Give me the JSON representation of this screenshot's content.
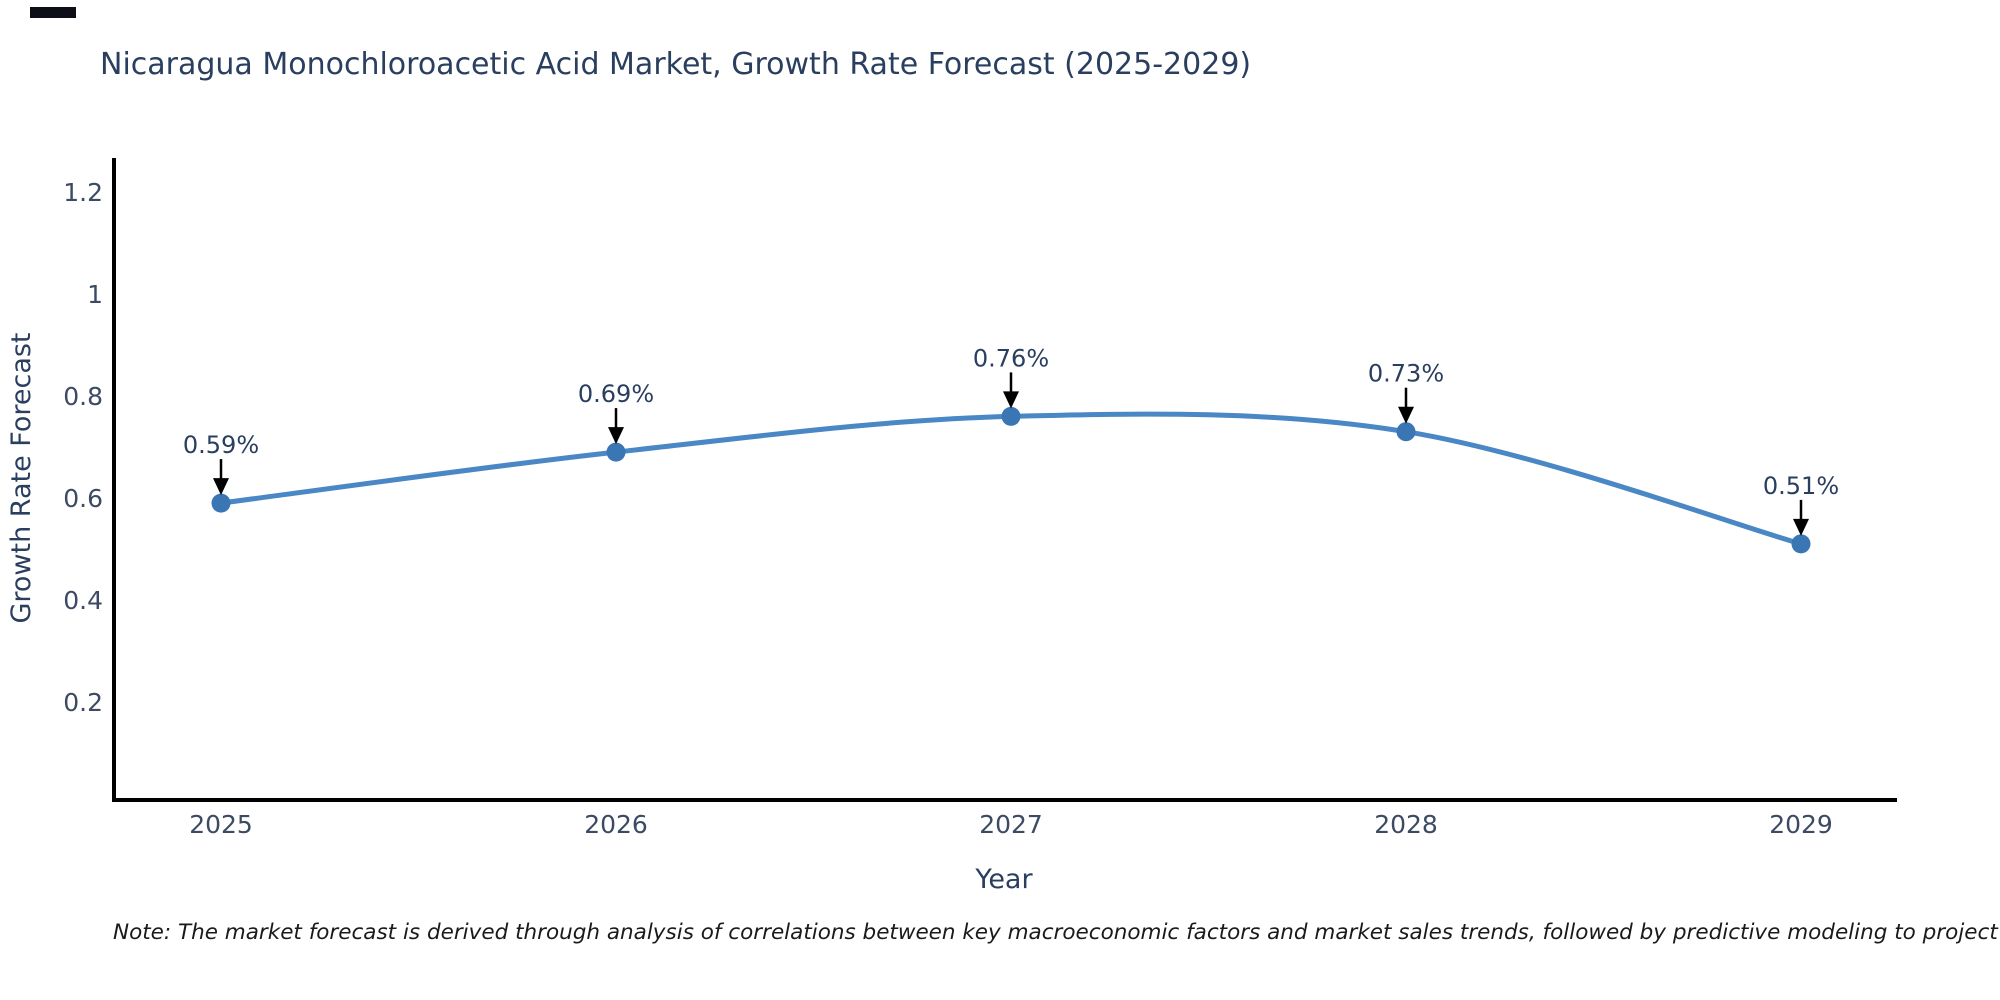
{
  "title": "Nicaragua Monochloroacetic Acid Market, Growth Rate Forecast (2025-2029)",
  "note": "Note: The market forecast is derived through analysis of correlations between key macroeconomic factors and market sales trends, followed by predictive modeling to project future sales",
  "chart_data": {
    "type": "line",
    "title": "Nicaragua Monochloroacetic Acid Market, Growth Rate Forecast (2025-2029)",
    "x": [
      "2025",
      "2026",
      "2027",
      "2028",
      "2029"
    ],
    "y": [
      0.59,
      0.69,
      0.76,
      0.73,
      0.51
    ],
    "point_labels": [
      "0.59%",
      "0.69%",
      "0.76%",
      "0.73%",
      "0.51%"
    ],
    "xlabel": "Year",
    "ylabel": "Growth Rate Forecast",
    "yticks": [
      "0.2",
      "0.4",
      "0.6",
      "0.8",
      "1",
      "1.2"
    ],
    "ytick_values": [
      0.2,
      0.4,
      0.6,
      0.8,
      1,
      1.2
    ],
    "ylim": [
      0,
      1.26
    ],
    "line_shape": "spline",
    "grid": false,
    "legend_position": "none",
    "annotation_style": "value label with downward arrow above each point",
    "colors": {
      "line": "#4a87c5",
      "marker": "#3a76b4",
      "axis": "#000000",
      "title_text": "#2a3f5f",
      "tick_text": "#3c4a63",
      "annotation_text": "#2a3f5f",
      "arrow": "#000000",
      "note_text": "#1a1a1a",
      "background": "#ffffff"
    }
  }
}
